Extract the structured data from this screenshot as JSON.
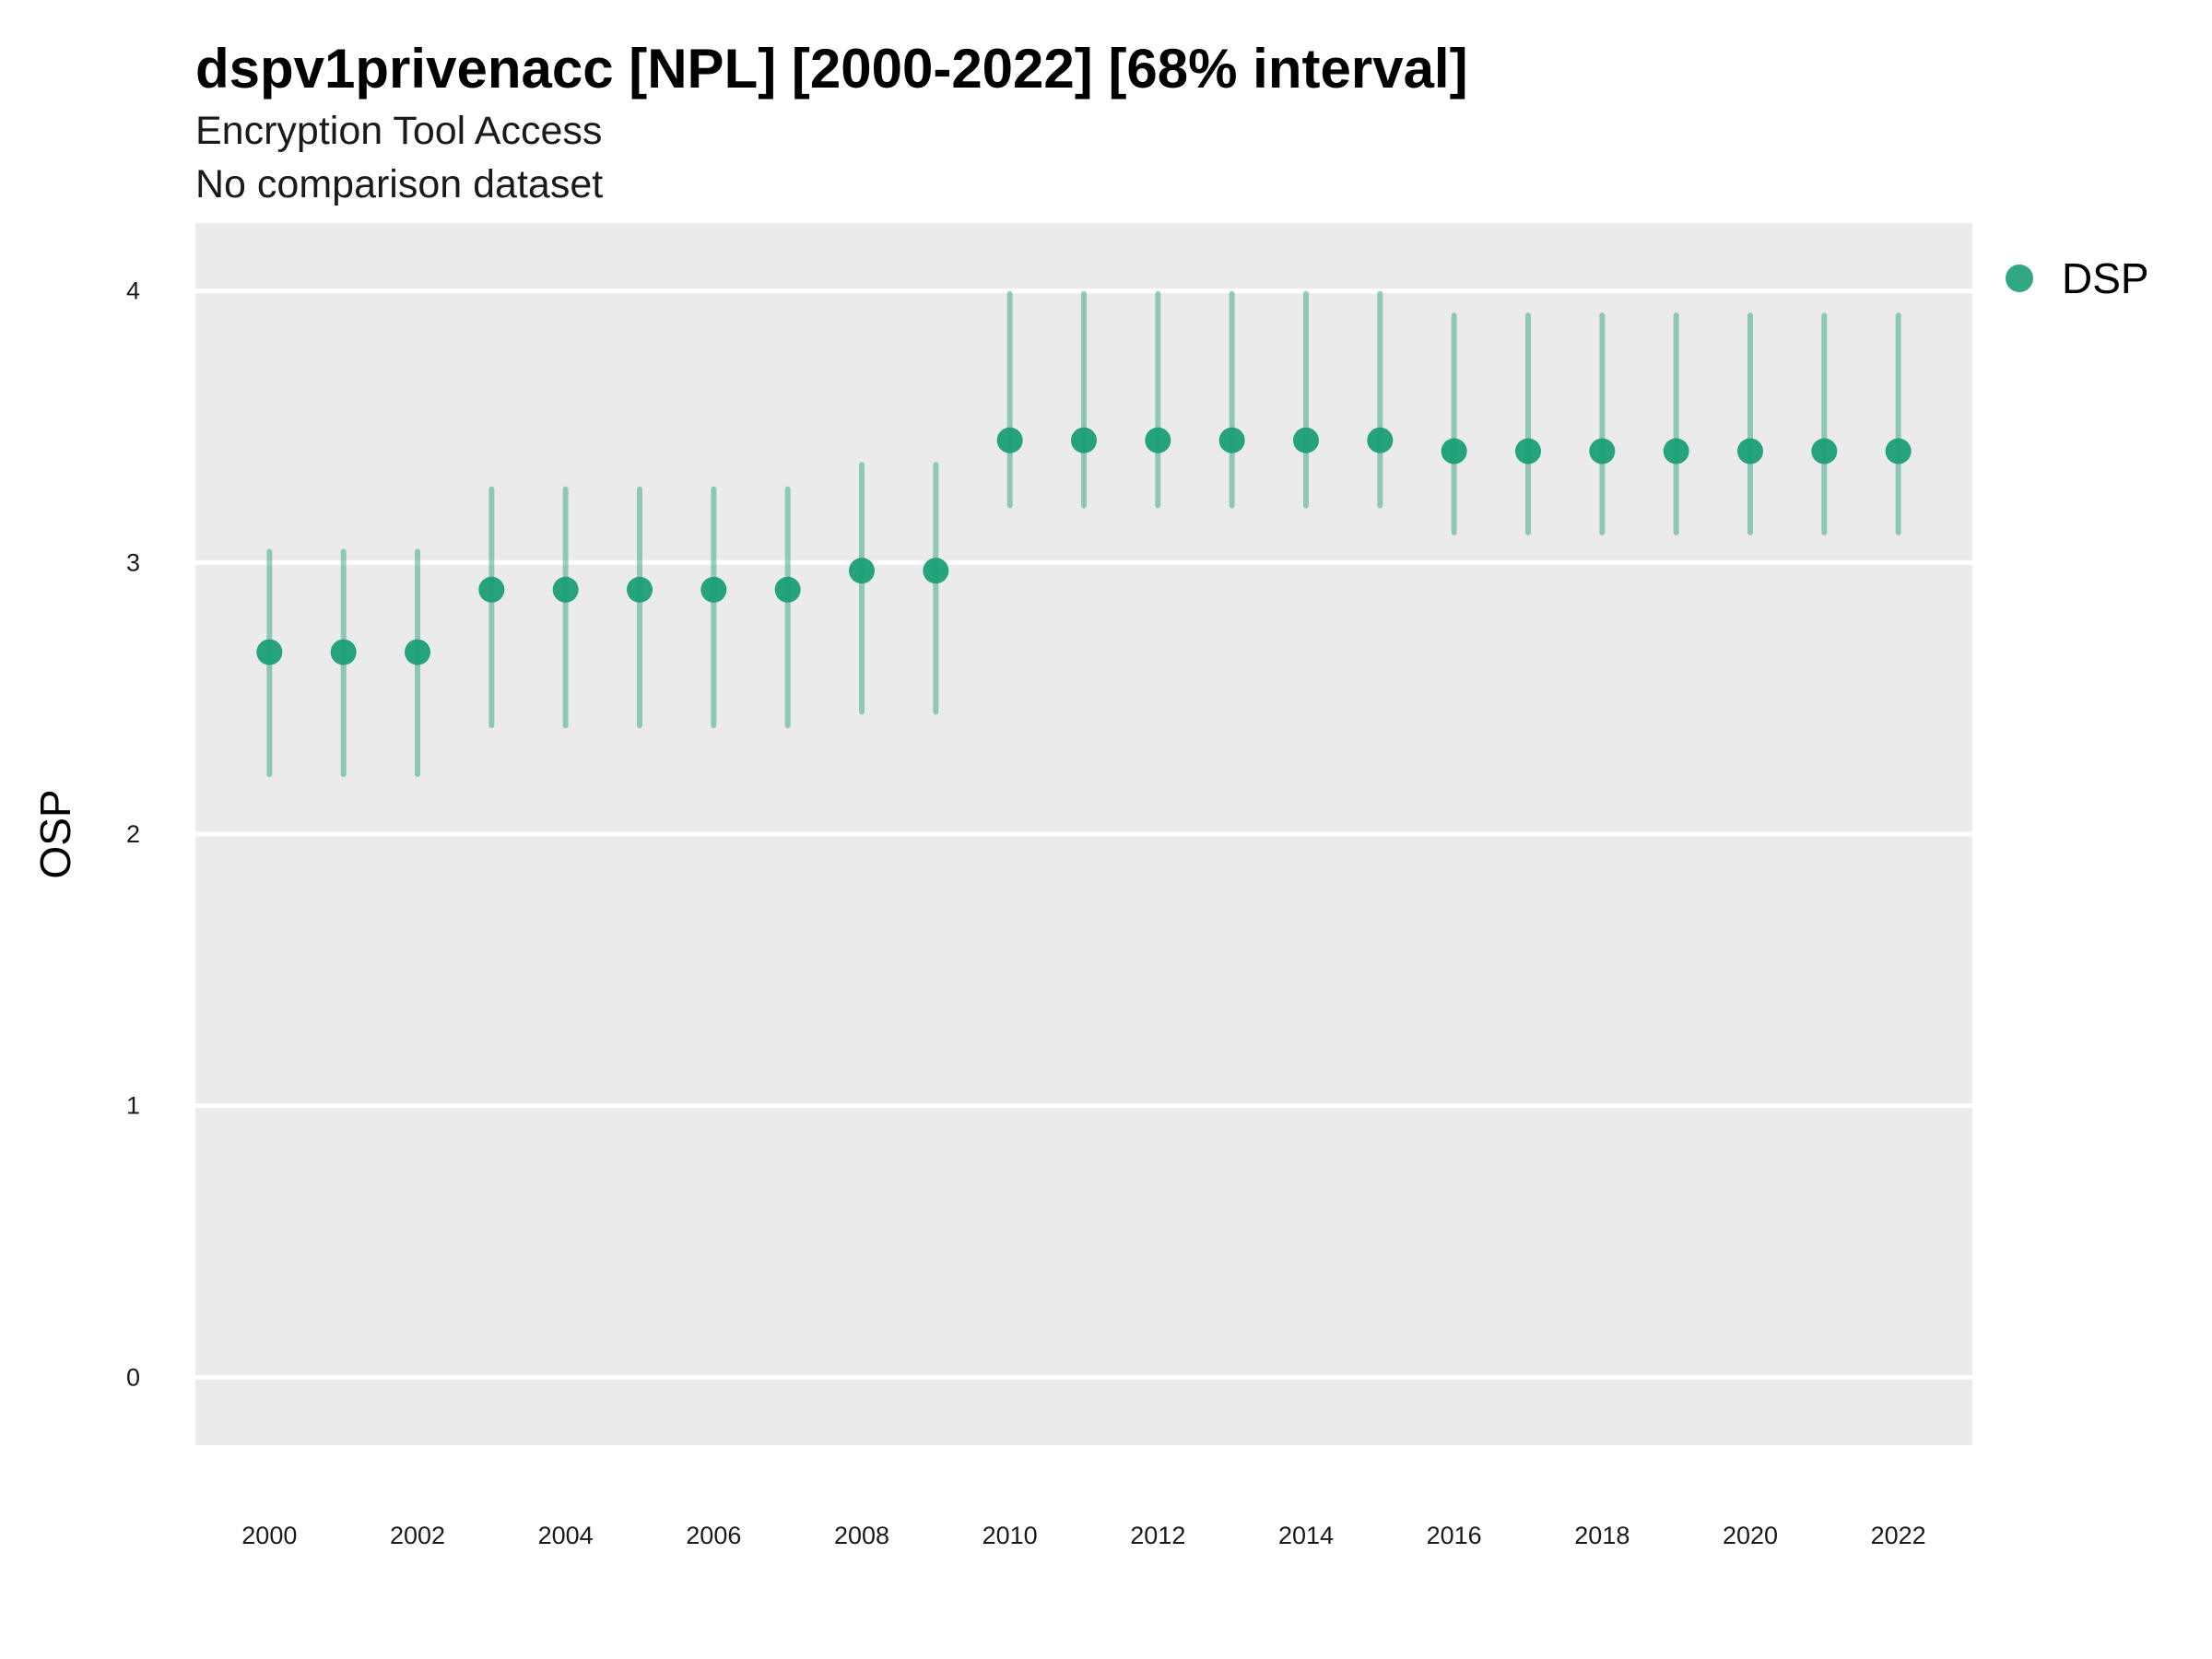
{
  "chart_data": {
    "type": "scatter",
    "title": "dspv1privenacc [NPL] [2000-2022] [68% interval]",
    "subtitle": [
      "Encryption Tool Access",
      "No comparison dataset"
    ],
    "xlabel": "",
    "ylabel": "OSP",
    "ylim": [
      -0.25,
      4.25
    ],
    "yticks": [
      0,
      1,
      2,
      3,
      4
    ],
    "xlim": [
      1999,
      2023
    ],
    "xticks": [
      2000,
      2002,
      2004,
      2006,
      2008,
      2010,
      2012,
      2014,
      2016,
      2018,
      2020,
      2022
    ],
    "grid": true,
    "legend_position": "right",
    "series": [
      {
        "name": "DSP",
        "color": "#1b9e77",
        "x": [
          2000,
          2001,
          2002,
          2003,
          2004,
          2005,
          2006,
          2007,
          2008,
          2009,
          2010,
          2011,
          2012,
          2013,
          2014,
          2015,
          2016,
          2017,
          2018,
          2019,
          2020,
          2021,
          2022
        ],
        "y": [
          2.67,
          2.67,
          2.67,
          2.9,
          2.9,
          2.9,
          2.9,
          2.9,
          2.97,
          2.97,
          3.45,
          3.45,
          3.45,
          3.45,
          3.45,
          3.45,
          3.41,
          3.41,
          3.41,
          3.41,
          3.41,
          3.41,
          3.41
        ],
        "lower": [
          2.22,
          2.22,
          2.22,
          2.4,
          2.4,
          2.4,
          2.4,
          2.4,
          2.45,
          2.45,
          3.21,
          3.21,
          3.21,
          3.21,
          3.21,
          3.21,
          3.11,
          3.11,
          3.11,
          3.11,
          3.11,
          3.11,
          3.11
        ],
        "upper": [
          3.04,
          3.04,
          3.04,
          3.27,
          3.27,
          3.27,
          3.27,
          3.27,
          3.36,
          3.36,
          3.99,
          3.99,
          3.99,
          3.99,
          3.99,
          3.99,
          3.91,
          3.91,
          3.91,
          3.91,
          3.91,
          3.91,
          3.91
        ]
      }
    ]
  }
}
